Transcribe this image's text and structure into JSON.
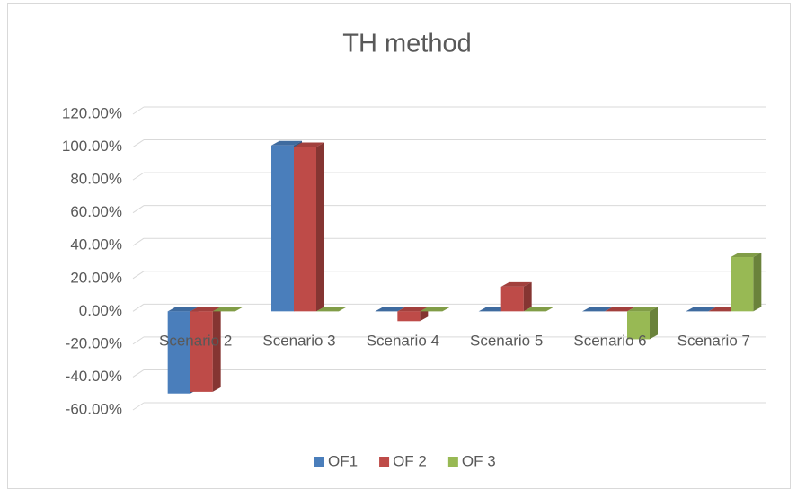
{
  "chart_data": {
    "type": "bar3d",
    "title": "TH method",
    "categories": [
      "Scenario 2",
      "Scenario 3",
      "Scenario 4",
      "Scenario 5",
      "Scenario 6",
      "Scenario 7"
    ],
    "series": [
      {
        "name": "OF1",
        "color": "#4a7ebb",
        "values": [
          -50,
          101,
          0,
          0,
          0,
          0
        ]
      },
      {
        "name": "OF 2",
        "color": "#be4b48",
        "values": [
          -49,
          100,
          -6,
          15,
          0,
          0
        ]
      },
      {
        "name": "OF 3",
        "color": "#98b954",
        "values": [
          0,
          0,
          0,
          0,
          -17,
          33
        ]
      }
    ],
    "ylim": [
      -60,
      120
    ],
    "yticks": [
      {
        "value": -60,
        "label": "-60.00%"
      },
      {
        "value": -40,
        "label": "-40.00%"
      },
      {
        "value": -20,
        "label": "-20.00%"
      },
      {
        "value": 0,
        "label": "0.00%"
      },
      {
        "value": 20,
        "label": "20.00%"
      },
      {
        "value": 40,
        "label": "40.00%"
      },
      {
        "value": 60,
        "label": "60.00%"
      },
      {
        "value": 80,
        "label": "80.00%"
      },
      {
        "value": 100,
        "label": "100.00%"
      },
      {
        "value": 120,
        "label": "120.00%"
      }
    ],
    "grid": true,
    "legend": "bottom"
  }
}
